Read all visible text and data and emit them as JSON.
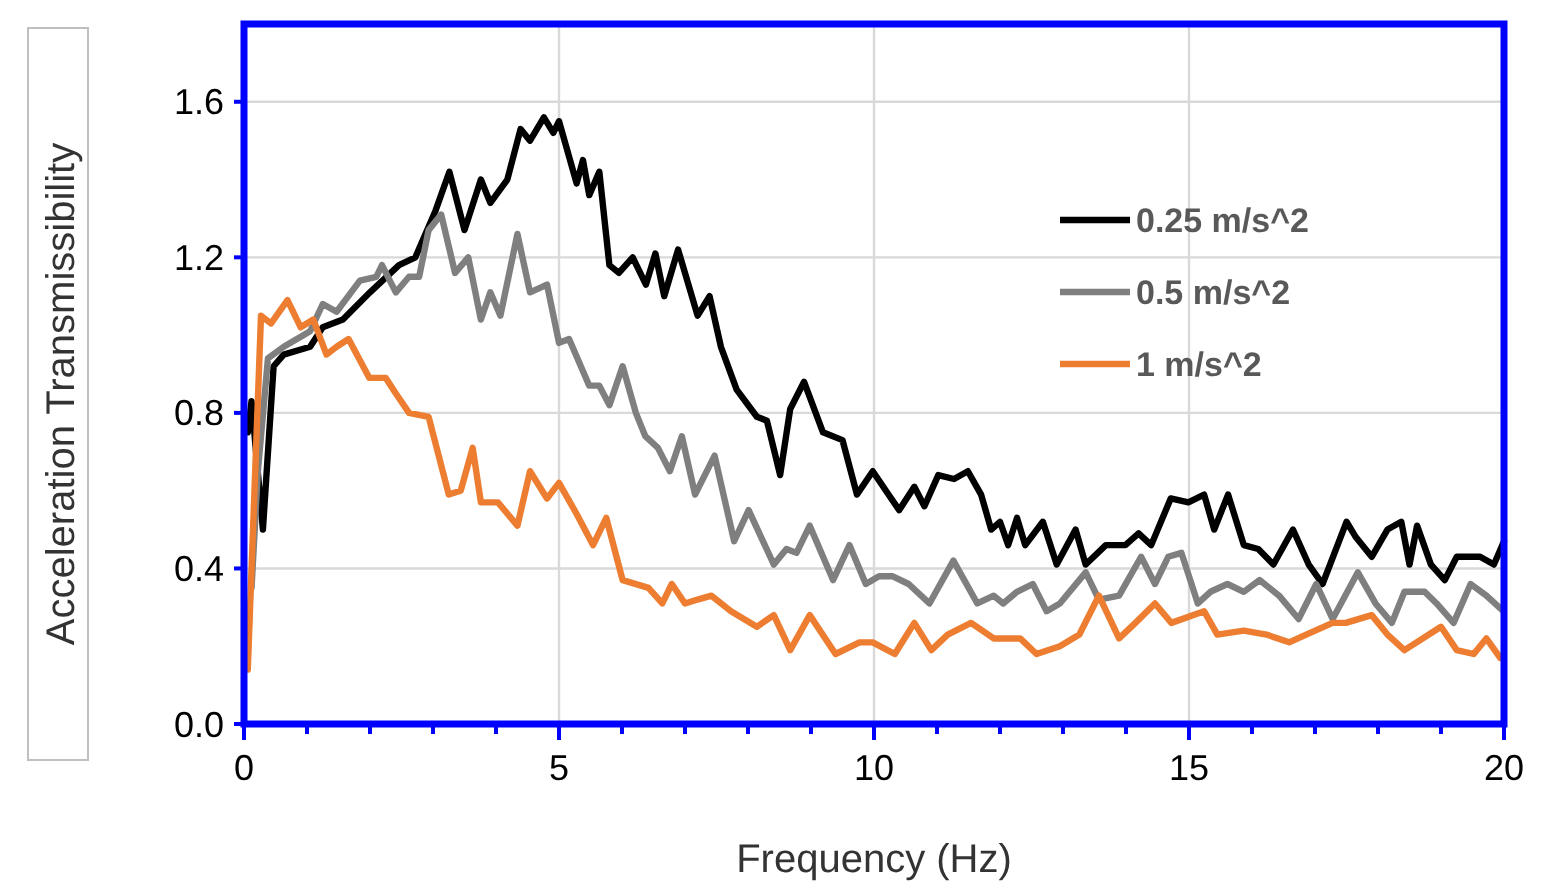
{
  "chart_data": {
    "type": "line",
    "xlabel": "Frequency (Hz)",
    "ylabel": "Acceleration Transmissibility",
    "xlim": [
      0,
      20
    ],
    "ylim": [
      0,
      1.8
    ],
    "xticks": [
      0,
      {
        "value": 1,
        "label": null
      },
      {
        "value": 2,
        "label": null
      },
      {
        "value": 3,
        "label": null
      },
      {
        "value": 4,
        "label": null
      },
      5,
      {
        "value": 6,
        "label": null
      },
      {
        "value": 7,
        "label": null
      },
      {
        "value": 8,
        "label": null
      },
      {
        "value": 9,
        "label": null
      },
      10,
      {
        "value": 11,
        "label": null
      },
      {
        "value": 12,
        "label": null
      },
      {
        "value": 13,
        "label": null
      },
      {
        "value": 14,
        "label": null
      },
      15,
      {
        "value": 16,
        "label": null
      },
      {
        "value": 17,
        "label": null
      },
      {
        "value": 18,
        "label": null
      },
      {
        "value": 19,
        "label": null
      },
      20
    ],
    "yticks": [
      {
        "value": 0,
        "label": "0.0"
      },
      0.4,
      0.8,
      1.2,
      1.6
    ],
    "grid": true,
    "legend": "top right",
    "marker": "none",
    "line_style": "solid",
    "series": [
      {
        "name": "0.25 m/s^2",
        "color": "#000000",
        "x": [
          0.06,
          0.12,
          0.3,
          0.47,
          0.63,
          1.05,
          1.25,
          1.57,
          2.0,
          2.46,
          2.72,
          3.04,
          3.26,
          3.5,
          3.76,
          3.91,
          4.18,
          4.39,
          4.54,
          4.76,
          4.91,
          5.0,
          5.28,
          5.38,
          5.48,
          5.64,
          5.8,
          5.95,
          6.17,
          6.38,
          6.53,
          6.67,
          6.89,
          7.2,
          7.39,
          7.57,
          7.82,
          8.14,
          8.3,
          8.51,
          8.67,
          8.89,
          9.19,
          9.5,
          9.73,
          9.98,
          10.23,
          10.4,
          10.64,
          10.8,
          11.02,
          11.27,
          11.49,
          11.7,
          11.86,
          12.0,
          12.13,
          12.27,
          12.4,
          12.68,
          12.9,
          13.2,
          13.36,
          13.68,
          13.99,
          14.2,
          14.4,
          14.71,
          14.99,
          15.24,
          15.4,
          15.62,
          15.87,
          16.1,
          16.34,
          16.65,
          16.9,
          17.12,
          17.5,
          17.65,
          17.9,
          18.15,
          18.37,
          18.5,
          18.62,
          18.84,
          19.06,
          19.25,
          19.62,
          19.84,
          20.0
        ],
        "values": [
          0.75,
          0.83,
          0.5,
          0.92,
          0.95,
          0.97,
          1.02,
          1.04,
          1.11,
          1.18,
          1.2,
          1.32,
          1.42,
          1.27,
          1.4,
          1.34,
          1.4,
          1.53,
          1.5,
          1.56,
          1.52,
          1.55,
          1.39,
          1.45,
          1.36,
          1.42,
          1.18,
          1.16,
          1.2,
          1.13,
          1.21,
          1.1,
          1.22,
          1.05,
          1.1,
          0.97,
          0.86,
          0.79,
          0.78,
          0.64,
          0.81,
          0.88,
          0.75,
          0.73,
          0.59,
          0.65,
          0.59,
          0.55,
          0.61,
          0.56,
          0.64,
          0.63,
          0.65,
          0.59,
          0.5,
          0.52,
          0.46,
          0.53,
          0.46,
          0.52,
          0.41,
          0.5,
          0.41,
          0.46,
          0.46,
          0.49,
          0.46,
          0.58,
          0.57,
          0.59,
          0.5,
          0.59,
          0.46,
          0.45,
          0.41,
          0.5,
          0.41,
          0.36,
          0.52,
          0.48,
          0.43,
          0.5,
          0.52,
          0.41,
          0.51,
          0.41,
          0.37,
          0.43,
          0.43,
          0.41,
          0.47
        ]
      },
      {
        "name": "0.5 m/s^2",
        "color": "#7f7f7f",
        "x": [
          0.12,
          0.22,
          0.38,
          0.63,
          1.05,
          1.25,
          1.47,
          1.84,
          2.1,
          2.19,
          2.41,
          2.62,
          2.78,
          2.93,
          3.13,
          3.35,
          3.56,
          3.76,
          3.91,
          4.07,
          4.34,
          4.54,
          4.81,
          5.0,
          5.16,
          5.48,
          5.64,
          5.8,
          6.01,
          6.22,
          6.37,
          6.57,
          6.76,
          6.95,
          7.16,
          7.47,
          7.78,
          8.01,
          8.41,
          8.61,
          8.77,
          8.98,
          9.35,
          9.61,
          9.87,
          10.08,
          10.29,
          10.55,
          10.88,
          11.26,
          11.64,
          11.9,
          12.05,
          12.27,
          12.52,
          12.74,
          12.95,
          13.36,
          13.57,
          13.89,
          14.24,
          14.46,
          14.67,
          14.88,
          15.14,
          15.34,
          15.61,
          15.87,
          16.12,
          16.43,
          16.74,
          17.02,
          17.28,
          17.68,
          17.96,
          18.22,
          18.42,
          18.74,
          18.93,
          19.2,
          19.47,
          19.72,
          19.99
        ],
        "values": [
          0.35,
          0.65,
          0.94,
          0.97,
          1.01,
          1.08,
          1.06,
          1.14,
          1.15,
          1.18,
          1.11,
          1.15,
          1.15,
          1.27,
          1.31,
          1.16,
          1.2,
          1.04,
          1.11,
          1.05,
          1.26,
          1.11,
          1.13,
          0.98,
          0.99,
          0.87,
          0.87,
          0.82,
          0.92,
          0.8,
          0.74,
          0.71,
          0.65,
          0.74,
          0.59,
          0.69,
          0.47,
          0.55,
          0.41,
          0.45,
          0.44,
          0.51,
          0.37,
          0.46,
          0.36,
          0.38,
          0.38,
          0.36,
          0.31,
          0.42,
          0.31,
          0.33,
          0.31,
          0.34,
          0.36,
          0.29,
          0.31,
          0.39,
          0.32,
          0.33,
          0.43,
          0.36,
          0.43,
          0.44,
          0.31,
          0.34,
          0.36,
          0.34,
          0.37,
          0.33,
          0.27,
          0.36,
          0.27,
          0.39,
          0.31,
          0.26,
          0.34,
          0.34,
          0.31,
          0.26,
          0.36,
          0.33,
          0.29
        ]
      },
      {
        "name": "1 m/s^2",
        "color": "#ed7d31",
        "x": [
          0.06,
          0.27,
          0.43,
          0.69,
          0.9,
          1.1,
          1.31,
          1.47,
          1.66,
          1.99,
          2.25,
          2.41,
          2.62,
          2.93,
          3.25,
          3.44,
          3.63,
          3.76,
          4.03,
          4.34,
          4.54,
          4.81,
          5.0,
          5.28,
          5.54,
          5.75,
          6.01,
          6.42,
          6.64,
          6.79,
          7.0,
          7.2,
          7.42,
          7.73,
          8.14,
          8.41,
          8.67,
          8.98,
          9.39,
          9.77,
          9.98,
          10.33,
          10.64,
          10.91,
          11.17,
          11.54,
          11.9,
          12.32,
          12.58,
          12.95,
          13.26,
          13.57,
          13.89,
          14.15,
          14.46,
          14.72,
          15.24,
          15.45,
          15.87,
          16.23,
          16.59,
          16.86,
          17.28,
          17.49,
          17.9,
          18.15,
          18.42,
          19.0,
          19.25,
          19.52,
          19.72,
          19.94
        ],
        "values": [
          0.14,
          1.05,
          1.03,
          1.09,
          1.02,
          1.04,
          0.95,
          0.97,
          0.99,
          0.89,
          0.89,
          0.85,
          0.8,
          0.79,
          0.59,
          0.6,
          0.71,
          0.57,
          0.57,
          0.51,
          0.65,
          0.58,
          0.62,
          0.54,
          0.46,
          0.53,
          0.37,
          0.35,
          0.31,
          0.36,
          0.31,
          0.32,
          0.33,
          0.29,
          0.25,
          0.28,
          0.19,
          0.28,
          0.18,
          0.21,
          0.21,
          0.18,
          0.26,
          0.19,
          0.23,
          0.26,
          0.22,
          0.22,
          0.18,
          0.2,
          0.23,
          0.33,
          0.22,
          0.26,
          0.31,
          0.26,
          0.29,
          0.23,
          0.24,
          0.23,
          0.21,
          0.23,
          0.26,
          0.26,
          0.28,
          0.23,
          0.19,
          0.25,
          0.19,
          0.18,
          0.22,
          0.17
        ]
      }
    ]
  }
}
